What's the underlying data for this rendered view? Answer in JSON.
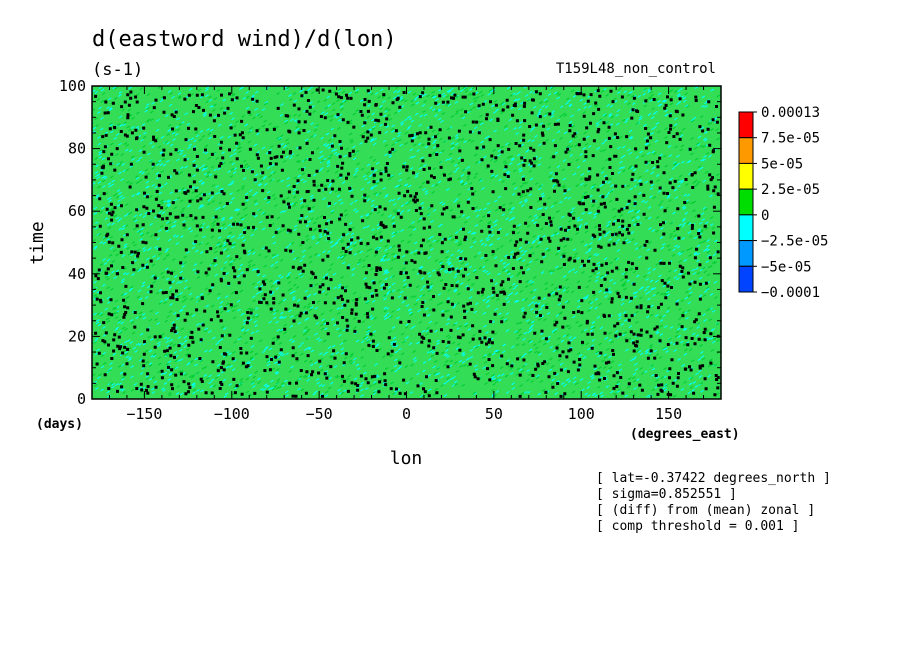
{
  "chart_data": {
    "type": "heatmap",
    "title": "d(eastword wind)/d(lon)",
    "units": "(s-1)",
    "run_label": "T159L48_non_control",
    "xlabel": "lon",
    "xunits": "(degrees_east)",
    "ylabel": "time",
    "yunits": "(days)",
    "xlim": [
      -180,
      180
    ],
    "ylim": [
      0,
      100
    ],
    "x_ticks": [
      -150,
      -100,
      -50,
      0,
      50,
      100,
      150
    ],
    "y_ticks": [
      0,
      20,
      40,
      60,
      80,
      100
    ],
    "x_tick_labels": [
      "−150",
      "−100",
      "−50",
      "0",
      "50",
      "100",
      "150"
    ],
    "y_tick_labels": [
      "0",
      "20",
      "40",
      "60",
      "80",
      "100"
    ],
    "colorbar": {
      "labels": [
        "0.00013",
        "7.5e-05",
        "5e-05",
        "2.5e-05",
        "0",
        "−2.5e-05",
        "−5e-05",
        "−0.0001"
      ],
      "colors": [
        "#ff0000",
        "#ff9900",
        "#ffff00",
        "#00dd00",
        "#00ffff",
        "#0099ff",
        "#0044ff"
      ],
      "dominant_colors": [
        "#33dd55",
        "#00ffff",
        "#00cc33"
      ]
    },
    "threshold_marker_color": "#000000",
    "annotations": [
      "[ lat=-0.37422 degrees_north ]",
      "[ sigma=0.852551 ]",
      "[ (diff) from (mean) zonal ]",
      "[ comp threshold = 0.001 ]"
    ]
  }
}
